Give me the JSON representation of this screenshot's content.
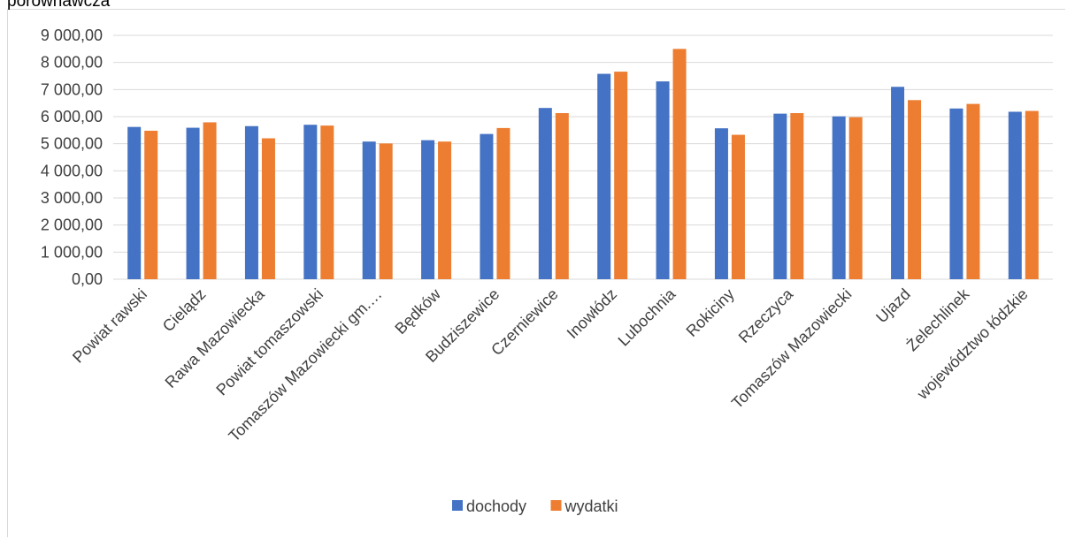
{
  "chart_data": {
    "type": "bar",
    "title": "porównawcza",
    "categories": [
      "Powiat rawski",
      "Cielądz",
      "Rawa Mazowiecka",
      "Powiat tomaszowski",
      "Tomaszów Mazowiecki gm.…",
      "Będków",
      "Budziszewice",
      "Czerniewice",
      "Inowłódz",
      "Lubochnia",
      "Rokiciny",
      "Rzeczyca",
      "Tomaszów Mazowiecki",
      "Ujazd",
      "Żelechlinek",
      "województwo łódzkie"
    ],
    "series": [
      {
        "name": "dochody",
        "color": "#4472c4",
        "values": [
          5620,
          5590,
          5650,
          5700,
          5080,
          5130,
          5360,
          6320,
          7580,
          7300,
          5570,
          6110,
          6010,
          7100,
          6300,
          6180
        ]
      },
      {
        "name": "wydatki",
        "color": "#ed7d31",
        "values": [
          5480,
          5790,
          5200,
          5670,
          5010,
          5080,
          5580,
          6130,
          7660,
          8500,
          5330,
          6130,
          5980,
          6610,
          6470,
          6210
        ]
      }
    ],
    "ylim": [
      0,
      9000
    ],
    "y_step": 1000,
    "y_tick_labels": [
      "0,00",
      "1 000,00",
      "2 000,00",
      "3 000,00",
      "4 000,00",
      "5 000,00",
      "6 000,00",
      "7 000,00",
      "8 000,00",
      "9 000,00"
    ],
    "xlabel": "",
    "ylabel": "",
    "grid": true,
    "legend_position": "bottom"
  }
}
